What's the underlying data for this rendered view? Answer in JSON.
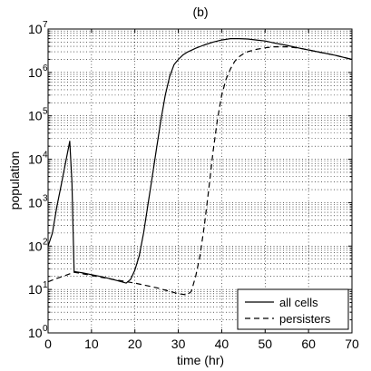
{
  "chart_data": {
    "type": "line",
    "title": "(b)",
    "xlabel": "time (hr)",
    "ylabel": "population",
    "xlim": [
      0,
      70
    ],
    "ylim": [
      1,
      10000000
    ],
    "yscale": "log",
    "grid": true,
    "x_ticks": [
      "0",
      "10",
      "20",
      "30",
      "40",
      "50",
      "60",
      "70"
    ],
    "y_ticks": [
      {
        "base": "10",
        "exp": "0"
      },
      {
        "base": "10",
        "exp": "1"
      },
      {
        "base": "10",
        "exp": "2"
      },
      {
        "base": "10",
        "exp": "3"
      },
      {
        "base": "10",
        "exp": "4"
      },
      {
        "base": "10",
        "exp": "5"
      },
      {
        "base": "10",
        "exp": "6"
      },
      {
        "base": "10",
        "exp": "7"
      }
    ],
    "legend_position": "bottom-right",
    "series": [
      {
        "name": "all cells",
        "style": "solid",
        "color": "#000000",
        "x": [
          0,
          1,
          2,
          3,
          4,
          5,
          5.5,
          6,
          8,
          10,
          12,
          14,
          16,
          18,
          19,
          20,
          21,
          22,
          23,
          24,
          25,
          26,
          27,
          28,
          29,
          30,
          31,
          32,
          34,
          36,
          38,
          40,
          42,
          44,
          46,
          48,
          50,
          52,
          55,
          58,
          62,
          66,
          70
        ],
        "y": [
          100,
          200,
          800,
          2500,
          8000,
          26000,
          3000,
          26,
          24,
          22,
          20,
          18,
          16,
          14,
          17,
          28,
          60,
          200,
          900,
          4000,
          18000,
          80000,
          300000,
          800000,
          1500000,
          2000000,
          2500000,
          2900000,
          3600000,
          4300000,
          5000000,
          5600000,
          6000000,
          6000000,
          5900000,
          5600000,
          5300000,
          4800000,
          4200000,
          3600000,
          3000000,
          2500000,
          2000000
        ]
      },
      {
        "name": "persisters",
        "style": "dashed",
        "color": "#000000",
        "x": [
          0,
          2,
          4,
          6,
          10,
          15,
          20,
          25,
          30,
          32,
          33,
          34,
          35,
          36,
          37,
          38,
          39,
          40,
          41,
          42,
          43,
          44,
          45,
          46,
          48,
          50,
          52,
          55,
          58,
          60,
          62,
          66,
          70
        ],
        "y": [
          15,
          18,
          21,
          25,
          21,
          17,
          14,
          11,
          8,
          7.5,
          9,
          20,
          60,
          300,
          2000,
          15000,
          80000,
          300000,
          700000,
          1200000,
          1800000,
          2300000,
          2700000,
          3000000,
          3400000,
          3700000,
          3900000,
          3900000,
          3600000,
          3300000,
          3000000,
          2500000,
          2000000
        ]
      }
    ]
  }
}
